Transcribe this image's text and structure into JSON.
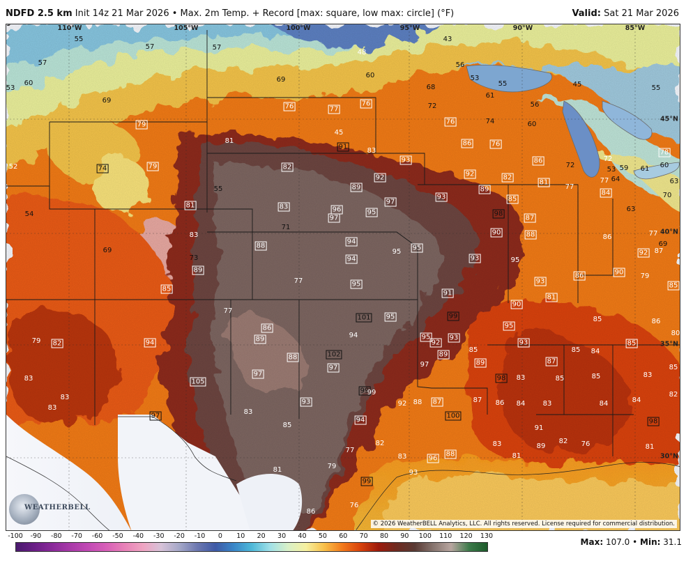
{
  "header": {
    "model": "NDFD 2.5 km",
    "description": "Init 14z 21 Mar 2026 • Max. 2m Temp. + Record [max: square, low max: circle] (°F)",
    "valid_label": "Valid:",
    "valid_value": "Sat 21 Mar 2026"
  },
  "longitudes": [
    "110°W",
    "105°W",
    "100°W",
    "95°W",
    "90°W",
    "85°W"
  ],
  "latitudes": [
    "45°N",
    "40°N",
    "35°N",
    "30°N"
  ],
  "labels": [
    {
      "v": "55"
    },
    {
      "v": "57"
    },
    {
      "v": "57"
    },
    {
      "v": "48",
      "c": "w"
    },
    {
      "v": "43"
    },
    {
      "v": "57"
    },
    {
      "v": "60"
    },
    {
      "v": "53"
    },
    {
      "v": "69"
    },
    {
      "v": "69"
    },
    {
      "v": "60"
    },
    {
      "v": "56"
    },
    {
      "v": "53"
    },
    {
      "v": "55"
    },
    {
      "v": "45"
    },
    {
      "v": "68"
    },
    {
      "v": "61"
    },
    {
      "v": "72"
    },
    {
      "v": "56"
    },
    {
      "v": "76",
      "c": "w",
      "r": 1
    },
    {
      "v": "77",
      "c": "w",
      "r": 1
    },
    {
      "v": "76",
      "c": "w",
      "r": 1
    },
    {
      "v": "79",
      "c": "w",
      "r": 1
    },
    {
      "v": "76",
      "c": "w",
      "r": 1
    },
    {
      "v": "74"
    },
    {
      "v": "60"
    },
    {
      "v": "55"
    },
    {
      "v": "45",
      "c": "w"
    },
    {
      "v": "81",
      "c": "w"
    },
    {
      "v": "91",
      "r": 1
    },
    {
      "v": "83",
      "c": "w"
    },
    {
      "v": "86",
      "c": "w",
      "r": 1
    },
    {
      "v": "76",
      "c": "w",
      "r": 1
    },
    {
      "v": "78",
      "c": "w",
      "r": 1
    },
    {
      "v": "52",
      "c": "w"
    },
    {
      "v": "74",
      "r": 1
    },
    {
      "v": "79",
      "c": "w",
      "r": 1
    },
    {
      "v": "82",
      "c": "w",
      "r": 1
    },
    {
      "v": "93",
      "c": "w",
      "r": 1
    },
    {
      "v": "86",
      "c": "w",
      "r": 1
    },
    {
      "v": "72"
    },
    {
      "v": "72",
      "c": "w"
    },
    {
      "v": "53"
    },
    {
      "v": "59"
    },
    {
      "v": "61"
    },
    {
      "v": "60"
    },
    {
      "v": "55"
    },
    {
      "v": "92",
      "c": "w",
      "r": 1
    },
    {
      "v": "89",
      "c": "w",
      "r": 1
    },
    {
      "v": "92",
      "c": "w",
      "r": 1
    },
    {
      "v": "82",
      "c": "w",
      "r": 1
    },
    {
      "v": "81",
      "c": "w",
      "r": 1
    },
    {
      "v": "77",
      "c": "w"
    },
    {
      "v": "77",
      "c": "w"
    },
    {
      "v": "64"
    },
    {
      "v": "63"
    },
    {
      "v": "54"
    },
    {
      "v": "81",
      "c": "w",
      "r": 1
    },
    {
      "v": "83",
      "c": "w",
      "r": 1
    },
    {
      "v": "96",
      "c": "w",
      "r": 1
    },
    {
      "v": "97",
      "c": "w",
      "r": 1
    },
    {
      "v": "95",
      "c": "w",
      "r": 1
    },
    {
      "v": "97",
      "c": "w",
      "r": 1
    },
    {
      "v": "93",
      "c": "w",
      "r": 1
    },
    {
      "v": "89",
      "c": "w",
      "r": 1
    },
    {
      "v": "85",
      "c": "w",
      "r": 1
    },
    {
      "v": "84",
      "c": "w",
      "r": 1
    },
    {
      "v": "70"
    },
    {
      "v": "63"
    },
    {
      "v": "71"
    },
    {
      "v": "98",
      "r": 1
    },
    {
      "v": "87",
      "c": "w",
      "r": 1
    },
    {
      "v": "83",
      "c": "w"
    },
    {
      "v": "90",
      "c": "w",
      "r": 1
    },
    {
      "v": "88",
      "c": "w",
      "r": 1
    },
    {
      "v": "86",
      "c": "w"
    },
    {
      "v": "77",
      "c": "w"
    },
    {
      "v": "69"
    },
    {
      "v": "69"
    },
    {
      "v": "88",
      "c": "w",
      "r": 1
    },
    {
      "v": "94",
      "c": "w",
      "r": 1
    },
    {
      "v": "95",
      "c": "w"
    },
    {
      "v": "95",
      "c": "w",
      "r": 1
    },
    {
      "v": "93",
      "c": "w",
      "r": 1
    },
    {
      "v": "92",
      "c": "w",
      "r": 1
    },
    {
      "v": "73"
    },
    {
      "v": "89",
      "c": "w",
      "r": 1
    },
    {
      "v": "94",
      "c": "w",
      "r": 1
    },
    {
      "v": "95",
      "c": "w"
    },
    {
      "v": "90",
      "c": "w",
      "r": 1
    },
    {
      "v": "79",
      "c": "w"
    },
    {
      "v": "77",
      "c": "w"
    },
    {
      "v": "95",
      "c": "w",
      "r": 1
    },
    {
      "v": "93",
      "c": "w",
      "r": 1
    },
    {
      "v": "86",
      "c": "w",
      "r": 1
    },
    {
      "v": "85",
      "c": "w",
      "r": 1
    },
    {
      "v": "81",
      "c": "w",
      "r": 1
    },
    {
      "v": "85",
      "c": "w",
      "r": 1
    },
    {
      "v": "77",
      "c": "w"
    },
    {
      "v": "91",
      "c": "w",
      "r": 1
    },
    {
      "v": "90",
      "c": "w",
      "r": 1
    },
    {
      "v": "86",
      "c": "w",
      "r": 1
    },
    {
      "v": "101",
      "r": 1
    },
    {
      "v": "95",
      "c": "w",
      "r": 1
    },
    {
      "v": "94",
      "c": "w"
    },
    {
      "v": "95",
      "c": "w",
      "r": 1
    },
    {
      "v": "85",
      "c": "w"
    },
    {
      "v": "86",
      "c": "w"
    },
    {
      "v": "80",
      "c": "w"
    },
    {
      "v": "79",
      "c": "w"
    },
    {
      "v": "82",
      "c": "w",
      "r": 1
    },
    {
      "v": "94",
      "c": "w",
      "r": 1
    },
    {
      "v": "89",
      "c": "w",
      "r": 1
    },
    {
      "v": "99",
      "r": 1
    },
    {
      "v": "95",
      "c": "w",
      "r": 1
    },
    {
      "v": "92",
      "c": "w",
      "r": 1
    },
    {
      "v": "93",
      "c": "w",
      "r": 1
    },
    {
      "v": "93",
      "c": "w",
      "r": 1
    },
    {
      "v": "85",
      "c": "w",
      "r": 1
    },
    {
      "v": "85",
      "c": "w"
    },
    {
      "v": "84",
      "c": "w"
    },
    {
      "v": "85",
      "c": "w"
    },
    {
      "v": "89",
      "c": "w",
      "r": 1
    },
    {
      "v": "89",
      "c": "w",
      "r": 1
    },
    {
      "v": "88",
      "c": "w",
      "r": 1
    },
    {
      "v": "102",
      "r": 1
    },
    {
      "v": "97",
      "c": "w",
      "r": 1
    },
    {
      "v": "97",
      "c": "w"
    },
    {
      "v": "87",
      "c": "w",
      "r": 1
    },
    {
      "v": "85",
      "c": "w"
    },
    {
      "v": "83",
      "c": "w"
    },
    {
      "v": "105",
      "c": "w",
      "r": 1
    },
    {
      "v": "97",
      "c": "w",
      "r": 1
    },
    {
      "v": "98",
      "r": 1
    },
    {
      "v": "83",
      "c": "w"
    },
    {
      "v": "85",
      "c": "w"
    },
    {
      "v": "85",
      "c": "w"
    },
    {
      "v": "83",
      "c": "w"
    },
    {
      "v": "82",
      "c": "w"
    },
    {
      "v": "83",
      "c": "w"
    },
    {
      "v": "93",
      "c": "w",
      "r": 1
    },
    {
      "v": "99",
      "r": 1
    },
    {
      "v": "99",
      "c": "w"
    },
    {
      "v": "92",
      "c": "w"
    },
    {
      "v": "88",
      "c": "w"
    },
    {
      "v": "87",
      "c": "w",
      "r": 1
    },
    {
      "v": "87",
      "c": "w"
    },
    {
      "v": "86",
      "c": "w"
    },
    {
      "v": "84",
      "c": "w"
    },
    {
      "v": "83",
      "c": "w"
    },
    {
      "v": "84",
      "c": "w"
    },
    {
      "v": "84",
      "c": "w"
    },
    {
      "v": "83",
      "c": "w"
    },
    {
      "v": "83",
      "c": "w"
    },
    {
      "v": "100",
      "r": 1
    },
    {
      "v": "97",
      "r": 1
    },
    {
      "v": "85",
      "c": "w"
    },
    {
      "v": "94",
      "c": "w",
      "r": 1
    },
    {
      "v": "98",
      "r": 1
    },
    {
      "v": "91",
      "c": "w"
    },
    {
      "v": "82",
      "c": "w"
    },
    {
      "v": "83",
      "c": "w"
    },
    {
      "v": "89",
      "c": "w"
    },
    {
      "v": "82",
      "c": "w"
    },
    {
      "v": "76",
      "c": "w"
    },
    {
      "v": "81",
      "c": "w"
    },
    {
      "v": "77",
      "c": "w"
    },
    {
      "v": "83",
      "c": "w"
    },
    {
      "v": "96",
      "c": "w",
      "r": 1
    },
    {
      "v": "88",
      "c": "w",
      "r": 1
    },
    {
      "v": "81",
      "c": "w"
    },
    {
      "v": "79",
      "c": "w"
    },
    {
      "v": "81",
      "c": "w"
    },
    {
      "v": "93",
      "c": "w"
    },
    {
      "v": "99",
      "r": 1
    },
    {
      "v": "76",
      "c": "w"
    },
    {
      "v": "86",
      "c": "w"
    },
    {
      "v": "87",
      "c": "w"
    },
    {
      "v": "97"
    },
    {
      "v": "73"
    }
  ],
  "copyright": "© 2026 WeatherBELL Analytics, LLC. All rights reserved. License required for commercial distribution.",
  "logo_text": "WEATHERBELL",
  "colorbar": {
    "ticks": [
      "-100",
      "-90",
      "-80",
      "-70",
      "-60",
      "-50",
      "-40",
      "-30",
      "-20",
      "-10",
      "0",
      "10",
      "20",
      "30",
      "40",
      "50",
      "60",
      "70",
      "80",
      "90",
      "100",
      "110",
      "120",
      "130"
    ],
    "colors": [
      "#4a1a6e",
      "#6a1e86",
      "#8a2a9a",
      "#a93aa9",
      "#c24ab5",
      "#d860b8",
      "#e882b8",
      "#efa4c2",
      "#d7c2d8",
      "#a5a8c8",
      "#6d78b0",
      "#3f5aa6",
      "#3a86c8",
      "#4eb8d8",
      "#9fe0e8",
      "#d8f0c8",
      "#f6f0a0",
      "#f8c04a",
      "#f27a1c",
      "#d8420c",
      "#9c1a0c",
      "#6e2a20",
      "#5a3a34",
      "#86746e",
      "#b8a6a0",
      "#3c7a4a",
      "#1c5a2a"
    ]
  },
  "maxmin": {
    "max_label": "Max:",
    "max_value": "107.0",
    "sep": "•",
    "min_label": "Min:",
    "min_value": "31.1"
  }
}
